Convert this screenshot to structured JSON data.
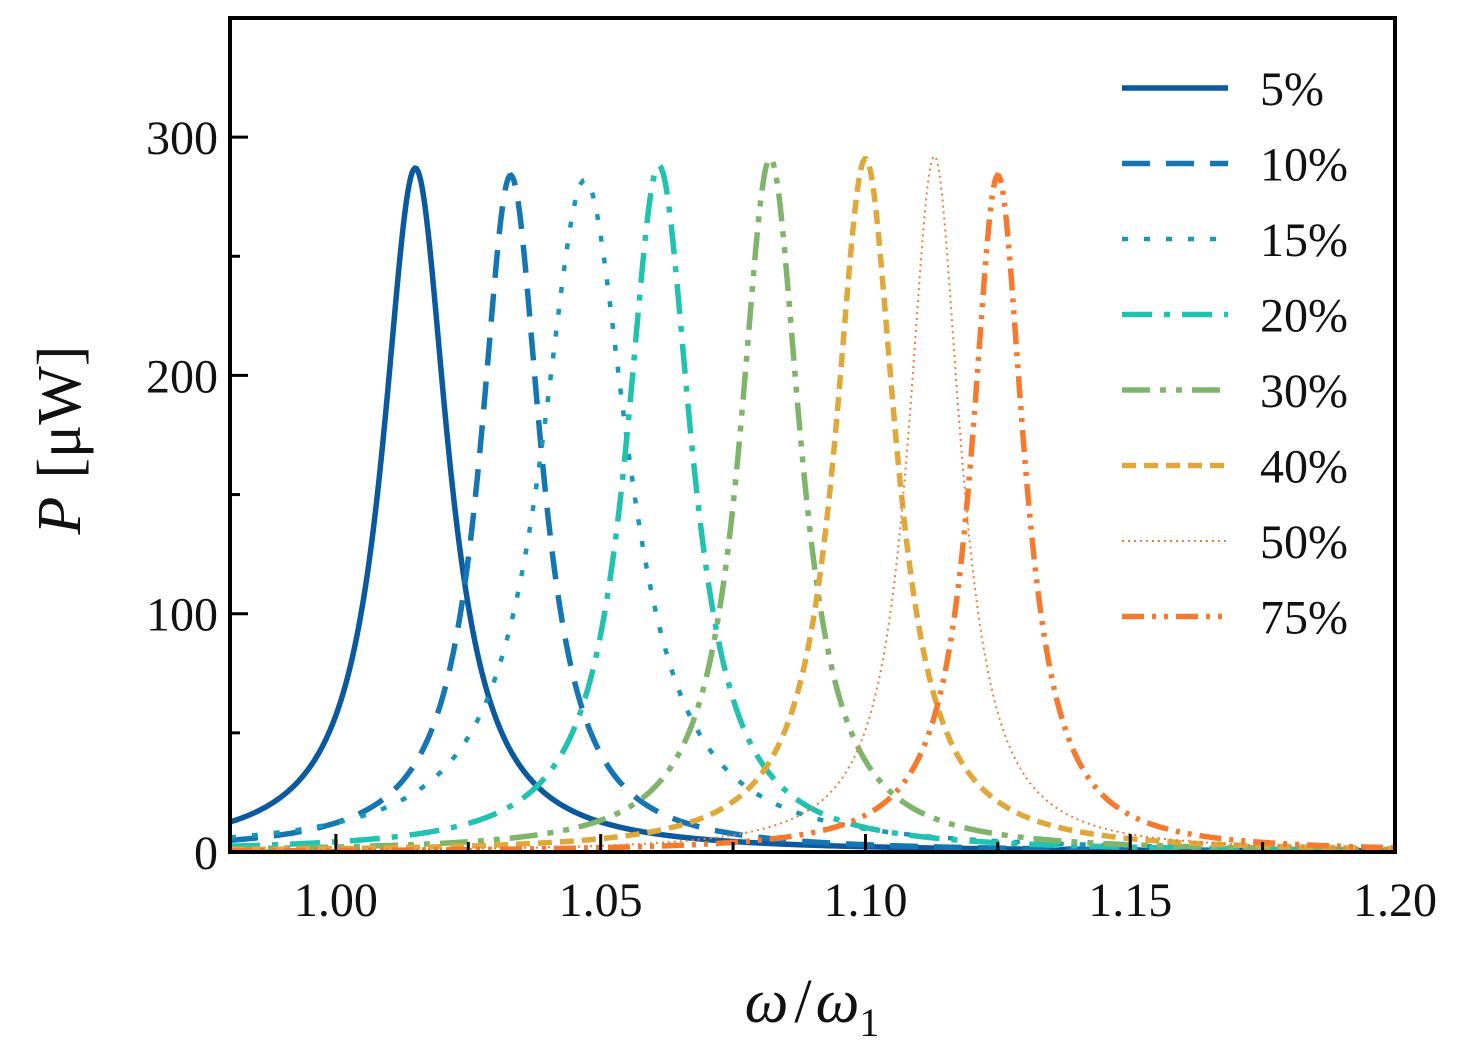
{
  "chart_data": {
    "type": "line",
    "title": "",
    "xlabel": {
      "main": "ω",
      "sep": "/",
      "sym": "ω",
      "sub": "1"
    },
    "ylabel": {
      "sym": "P",
      "unit": "[μW]"
    },
    "xlim": [
      0.98,
      1.2
    ],
    "ylim": [
      0,
      350
    ],
    "x_ticks": [
      1.0,
      1.05,
      1.1,
      1.15,
      1.2
    ],
    "x_tick_labels": [
      "1.00",
      "1.05",
      "1.10",
      "1.15",
      "1.20"
    ],
    "y_ticks": [
      0,
      100,
      200,
      300
    ],
    "y_tick_labels": [
      "0",
      "100",
      "200",
      "300"
    ],
    "y_minor_ticks": [
      50,
      150,
      250
    ],
    "legend_position": "top-right",
    "series": [
      {
        "name": "5%",
        "color": "#0b5aa0",
        "dash": "solid",
        "peak_x": 1.015,
        "peak_y": 287,
        "half_width": 0.0075
      },
      {
        "name": "10%",
        "color": "#1576b4",
        "dash": "dash",
        "peak_x": 1.033,
        "peak_y": 284,
        "half_width": 0.007
      },
      {
        "name": "15%",
        "color": "#1898b8",
        "dash": "dot",
        "peak_x": 1.047,
        "peak_y": 282,
        "half_width": 0.01
      },
      {
        "name": "20%",
        "color": "#22c2b0",
        "dash": "dashdot",
        "peak_x": 1.061,
        "peak_y": 288,
        "half_width": 0.0075
      },
      {
        "name": "30%",
        "color": "#7fb56a",
        "dash": "dashdotdot",
        "peak_x": 1.082,
        "peak_y": 291,
        "half_width": 0.007
      },
      {
        "name": "40%",
        "color": "#e0a83a",
        "dash": "shortdash",
        "peak_x": 1.1,
        "peak_y": 291,
        "half_width": 0.007
      },
      {
        "name": "50%",
        "color": "#f07a3a",
        "dash": "finedot",
        "peak_x": 1.113,
        "peak_y": 292,
        "half_width": 0.006
      },
      {
        "name": "75%",
        "color": "#f57a2e",
        "dash": "dashdotdot-thin",
        "peak_x": 1.125,
        "peak_y": 284,
        "half_width": 0.006
      }
    ]
  }
}
